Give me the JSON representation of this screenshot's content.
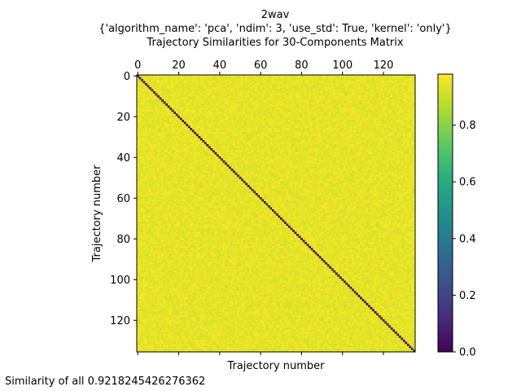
{
  "titles": {
    "line1": "2wav",
    "line2": "{'algorithm_name': 'pca', 'ndim': 3, 'use_std': True, 'kernel': 'only'}",
    "line3": "Trajectory Similarities for 30-Components Matrix"
  },
  "footer_text": "Similarity of all 0.9218245426276362",
  "chart_data": {
    "type": "heatmap",
    "n": 136,
    "xlabel": "Trajectory number",
    "ylabel": "Trajectory number",
    "x_ticks_top": [
      0,
      20,
      40,
      60,
      80,
      100,
      120
    ],
    "x_ticks_bottom_labeled": false,
    "y_ticks": [
      0,
      20,
      40,
      60,
      80,
      100,
      120
    ],
    "diagonal_value": 0.0,
    "off_diagonal_mean": 0.93,
    "off_diagonal_range": [
      0.86,
      0.98
    ],
    "colormap": "viridis",
    "colorbar": {
      "min": 0.0,
      "max": 0.98,
      "ticks": [
        0.0,
        0.2,
        0.4,
        0.6,
        0.8
      ]
    },
    "colors": {
      "low": "#440154",
      "high": "#fde725",
      "cell_typical": "#d2e21b"
    }
  }
}
